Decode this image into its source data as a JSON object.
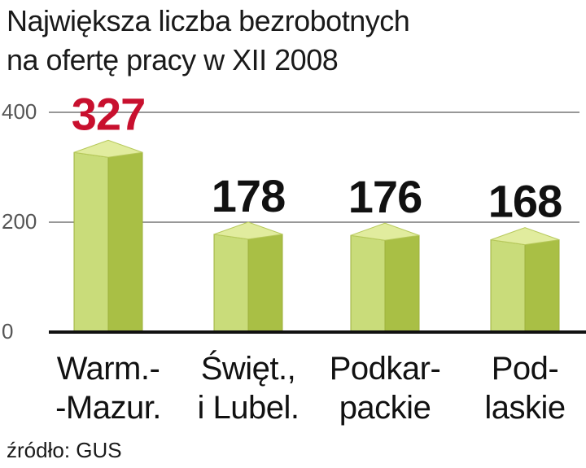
{
  "title_line1": "Największa liczba bezrobotnych",
  "title_line2": "na ofertę pracy w XII 2008",
  "source": "źródło: GUS",
  "colors": {
    "bar_front": "#c9dc7a",
    "bar_side": "#a9bf45",
    "bar_top": "#e1ec9e",
    "highlight_label": "#c8102e",
    "label": "#111111",
    "grid": "#777777"
  },
  "chart_data": {
    "type": "bar",
    "categories": [
      [
        "Warm.-",
        "-Mazur."
      ],
      [
        "Święt.,",
        "i Lubel."
      ],
      [
        "Podkar-",
        "packie"
      ],
      [
        "Pod-",
        "laskie"
      ]
    ],
    "values": [
      327,
      178,
      176,
      168
    ],
    "value_labels": [
      "327",
      "178",
      "176",
      "168"
    ],
    "highlight_index": 0,
    "ylim": [
      0,
      400
    ],
    "yticks": [
      0,
      200,
      400
    ],
    "grid": true
  }
}
